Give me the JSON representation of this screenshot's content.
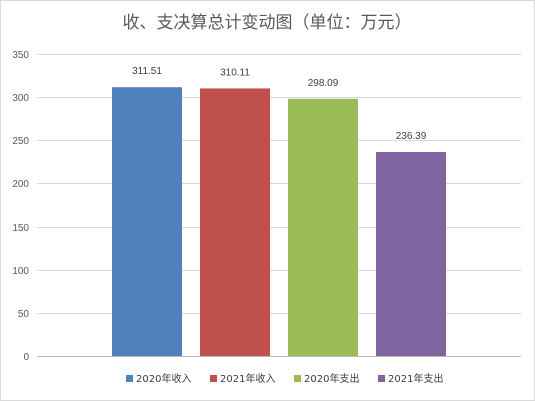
{
  "chart_data": {
    "type": "bar",
    "title": "收、支决算总计变动图（单位：万元）",
    "categories": [
      "2020年收入",
      "2021年收入",
      "2020年支出",
      "2021年支出"
    ],
    "values": [
      311.51,
      310.11,
      298.09,
      236.39
    ],
    "value_labels": [
      "311.51",
      "310.11",
      "298.09",
      "236.39"
    ],
    "colors": [
      "#4f81bd",
      "#c0504d",
      "#9bbb59",
      "#8064a2"
    ],
    "ylim": [
      0,
      350
    ],
    "yticks": [
      0,
      50,
      100,
      150,
      200,
      250,
      300,
      350
    ],
    "grid": true,
    "legend_position": "bottom",
    "xlabel": "",
    "ylabel": ""
  }
}
